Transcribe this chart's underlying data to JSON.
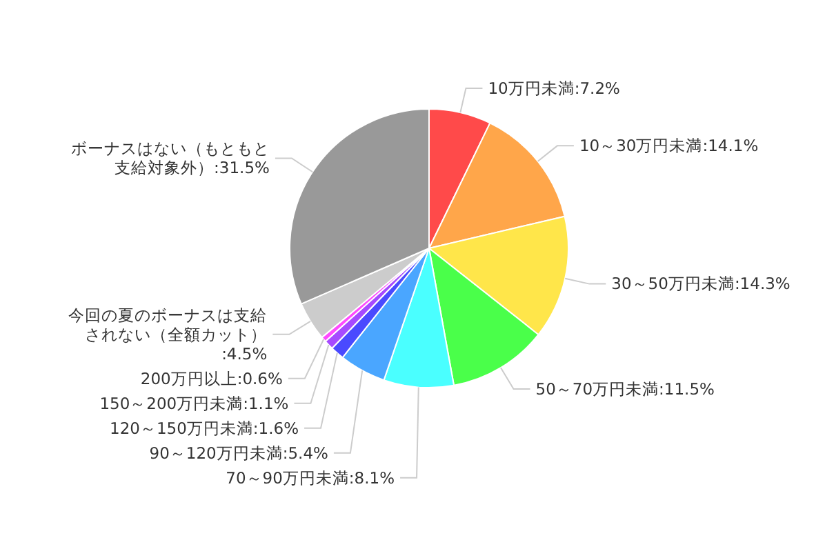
{
  "chart_data": {
    "type": "pie",
    "categories": [
      "10万円未満",
      "10～30万円未満",
      "30～50万円未満",
      "50～70万円未満",
      "70～90万円未満",
      "90～120万円未満",
      "120～150万円未満",
      "150～200万円未満",
      "200万円以上",
      "今回の夏のボーナスは支給されない（全額カット）",
      "ボーナスはない（もともと支給対象外）"
    ],
    "values": [
      7.2,
      14.1,
      14.3,
      11.5,
      8.1,
      5.4,
      1.6,
      1.1,
      0.6,
      4.5,
      31.5
    ],
    "colors": [
      "#ff4a4a",
      "#ffa64a",
      "#ffe64a",
      "#4aff4a",
      "#4affff",
      "#4aa6ff",
      "#4a4aff",
      "#a64aff",
      "#ff4aff",
      "#cccccc",
      "#999999"
    ],
    "value_labels": [
      ":7.2%",
      ":14.1%",
      ":14.3%",
      ":11.5%",
      ":8.1%",
      ":5.4%",
      ":1.6%",
      ":1.1%",
      ":0.6%",
      ":4.5%",
      ":31.5%"
    ]
  }
}
